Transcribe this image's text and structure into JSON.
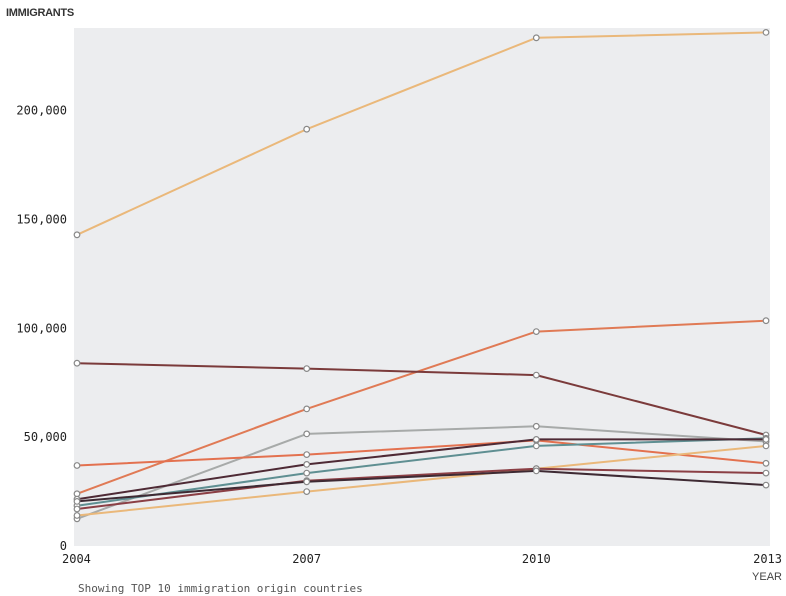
{
  "chart_data": {
    "type": "line",
    "ylabel": "IMMIGRANTS",
    "xlabel": "YEAR",
    "x": [
      2004,
      2007,
      2010,
      2013
    ],
    "xticks": [
      "2004",
      "2007",
      "2010",
      "2013"
    ],
    "yticks": [
      {
        "value": 0,
        "label": "0"
      },
      {
        "value": 50000,
        "label": "50,000"
      },
      {
        "value": 100000,
        "label": "100,000"
      },
      {
        "value": 150000,
        "label": "150,000"
      },
      {
        "value": 200000,
        "label": "200,000"
      }
    ],
    "ylim": [
      0,
      238000
    ],
    "grid": false,
    "background": "#ecedef",
    "series": [
      {
        "color": "#eab87a",
        "values": [
          143000,
          191500,
          233500,
          236000
        ]
      },
      {
        "color": "#e07a55",
        "values": [
          24000,
          63000,
          98500,
          103500
        ]
      },
      {
        "color": "#7b3b3b",
        "values": [
          84000,
          81500,
          78500,
          51000
        ]
      },
      {
        "color": "#a7aaa9",
        "values": [
          12500,
          51500,
          55000,
          48000
        ]
      },
      {
        "color": "#e3714f",
        "values": [
          37000,
          42000,
          48500,
          38000
        ]
      },
      {
        "color": "#5f8f92",
        "values": [
          18500,
          33500,
          46000,
          49500
        ]
      },
      {
        "color": "#4e2a35",
        "values": [
          21500,
          37500,
          49000,
          49000
        ]
      },
      {
        "color": "#eab87a",
        "values": [
          14000,
          25000,
          35500,
          46000
        ]
      },
      {
        "color": "#8b3f45",
        "values": [
          17000,
          30000,
          35500,
          33500
        ]
      },
      {
        "color": "#3e2a33",
        "values": [
          20500,
          29500,
          34500,
          28000
        ]
      }
    ]
  },
  "footnote": "Showing TOP 10 immigration origin countries"
}
